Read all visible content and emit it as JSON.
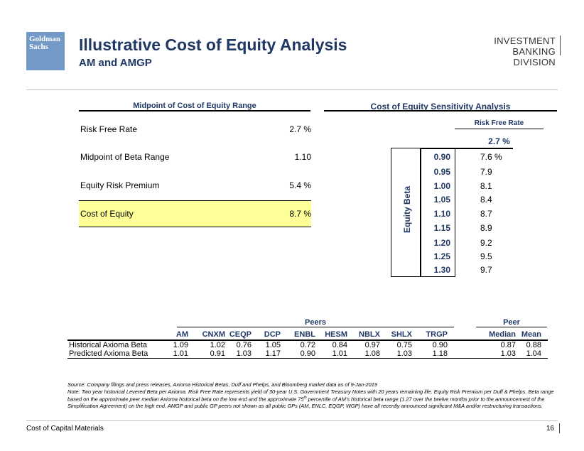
{
  "header": {
    "logo_line1": "Goldman",
    "logo_line2": "Sachs",
    "title": "Illustrative Cost of Equity Analysis",
    "subtitle": "AM and AMGP",
    "division_line1": "INVESTMENT BANKING",
    "division_line2": "DIVISION"
  },
  "left_panel": {
    "title": "Midpoint of Cost of Equity Range",
    "rows": [
      {
        "label": "Risk Free Rate",
        "value": "2.7 %"
      },
      {
        "label": "Midpoint of Beta Range",
        "value": "1.10"
      },
      {
        "label": "Equity Risk Premium",
        "value": "5.4 %"
      },
      {
        "label": "Cost of Equity",
        "value": "8.7 %"
      }
    ]
  },
  "right_panel": {
    "title": "Cost of Equity Sensitivity Analysis",
    "column_label": "Risk Free Rate",
    "column_value": "2.7 %",
    "row_axis_label": "Equity Beta",
    "rows": [
      {
        "beta": "0.90",
        "rate": "7.6 %"
      },
      {
        "beta": "0.95",
        "rate": "7.9"
      },
      {
        "beta": "1.00",
        "rate": "8.1"
      },
      {
        "beta": "1.05",
        "rate": "8.4"
      },
      {
        "beta": "1.10",
        "rate": "8.7"
      },
      {
        "beta": "1.15",
        "rate": "8.9"
      },
      {
        "beta": "1.20",
        "rate": "9.2"
      },
      {
        "beta": "1.25",
        "rate": "9.5"
      },
      {
        "beta": "1.30",
        "rate": "9.7"
      }
    ]
  },
  "peers_table": {
    "peers_header": "Peers",
    "peer_header": "Peer",
    "columns": [
      "AM",
      "CNXM",
      "CEQP",
      "DCP",
      "ENBL",
      "HESM",
      "NBLX",
      "SHLX",
      "TRGP",
      "Median",
      "Mean"
    ],
    "rows": [
      {
        "label": "Historical Axioma Beta",
        "values": [
          "1.09",
          "1.02",
          "0.76",
          "1.05",
          "0.72",
          "0.84",
          "0.97",
          "0.75",
          "0.90",
          "0.87",
          "0.88"
        ]
      },
      {
        "label": "Predicted Axioma Beta",
        "values": [
          "1.01",
          "0.91",
          "1.03",
          "1.17",
          "0.90",
          "1.01",
          "1.08",
          "1.03",
          "1.18",
          "1.03",
          "1.04"
        ]
      }
    ]
  },
  "notes": {
    "source": "Source: Company filings and press releases, Axioma Historical Betas, Duff and Phelps, and Bloomberg market data as of 9-Jan-2019",
    "note_part1": "Note: Two year historical Levered Beta per Axioma. Risk Free Rate represents yield of 30-year U.S. Government Treasury Notes with 20 years remaining life. Equity Risk Premium per Duff & Phelps. Beta range based on the approximate peer median Axioma historical beta on the low end and the approximate 75",
    "note_sup": "th",
    "note_part2": " percentile of AM’s historical beta range (1.27 over the twelve months prior to the announcement of the Simplification Agreement) on the high end. AMGP and public GP peers not shown as all public GPs (AM, ENLC, EQGP, WGP) have all recently announced significant M&A and/or restructuring transactions."
  },
  "footer": {
    "left": "Cost of Capital Materials",
    "page": "16"
  }
}
